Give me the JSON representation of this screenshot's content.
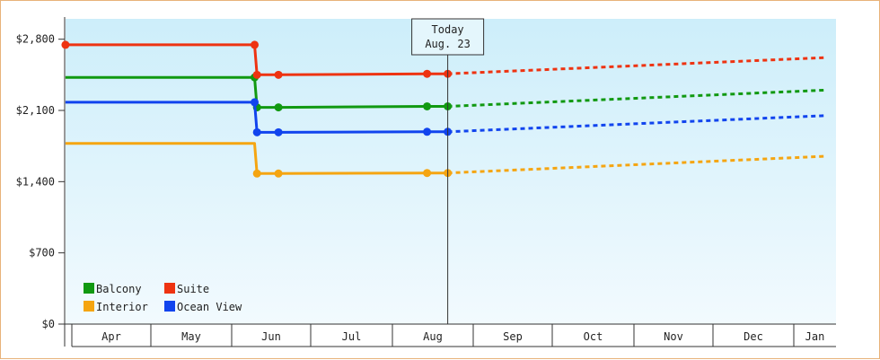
{
  "chart_data": {
    "type": "line",
    "ylim": [
      0,
      3000
    ],
    "y_ticks": [
      0,
      700,
      1400,
      2100,
      2800
    ],
    "y_tick_labels": [
      "$0",
      "$700",
      "$1,400",
      "$2,100",
      "$2,800"
    ],
    "x_labels": [
      "Apr",
      "May",
      "Jun",
      "Jul",
      "Aug",
      "Sep",
      "Oct",
      "Nov",
      "Dec",
      "Jan"
    ],
    "x_range": [
      -0.08,
      9.5
    ],
    "today": {
      "x": 4.73,
      "line1": "Today",
      "line2": "Aug. 23"
    },
    "grid": false,
    "legend_position": "bottom-left",
    "background_gradient": [
      "#cdeefa",
      "#f2fafe"
    ],
    "series": [
      {
        "name": "Balcony",
        "color": "#119911",
        "actual": [
          [
            -0.08,
            2425
          ],
          [
            2.3,
            2425
          ],
          [
            2.33,
            2130
          ],
          [
            2.6,
            2130
          ],
          [
            4.47,
            2140
          ],
          [
            4.73,
            2140
          ]
        ],
        "actual_markers": [
          [
            2.3,
            2425
          ],
          [
            2.33,
            2130
          ],
          [
            2.6,
            2130
          ],
          [
            4.47,
            2140
          ],
          [
            4.73,
            2140
          ]
        ],
        "forecast": [
          [
            4.73,
            2140
          ],
          [
            9.5,
            2300
          ]
        ]
      },
      {
        "name": "Suite",
        "color": "#ee3311",
        "actual": [
          [
            -0.08,
            2745
          ],
          [
            2.3,
            2745
          ],
          [
            2.33,
            2450
          ],
          [
            2.6,
            2450
          ],
          [
            4.47,
            2460
          ],
          [
            4.73,
            2460
          ]
        ],
        "actual_markers": [
          [
            -0.08,
            2745
          ],
          [
            2.3,
            2745
          ],
          [
            2.33,
            2450
          ],
          [
            2.6,
            2450
          ],
          [
            4.47,
            2460
          ],
          [
            4.73,
            2460
          ]
        ],
        "forecast": [
          [
            4.73,
            2460
          ],
          [
            9.5,
            2620
          ]
        ]
      },
      {
        "name": "Interior",
        "color": "#f5a511",
        "actual": [
          [
            -0.08,
            1775
          ],
          [
            2.3,
            1775
          ],
          [
            2.33,
            1480
          ],
          [
            2.6,
            1480
          ],
          [
            4.47,
            1485
          ],
          [
            4.73,
            1485
          ]
        ],
        "actual_markers": [
          [
            2.33,
            1480
          ],
          [
            2.6,
            1480
          ],
          [
            4.47,
            1485
          ],
          [
            4.73,
            1485
          ]
        ],
        "forecast": [
          [
            4.73,
            1485
          ],
          [
            9.5,
            1650
          ]
        ]
      },
      {
        "name": "Ocean View",
        "color": "#1144ee",
        "actual": [
          [
            -0.08,
            2180
          ],
          [
            2.3,
            2180
          ],
          [
            2.33,
            1885
          ],
          [
            2.6,
            1885
          ],
          [
            4.47,
            1890
          ],
          [
            4.73,
            1890
          ]
        ],
        "actual_markers": [
          [
            2.3,
            2180
          ],
          [
            2.33,
            1885
          ],
          [
            2.6,
            1885
          ],
          [
            4.47,
            1890
          ],
          [
            4.73,
            1890
          ]
        ],
        "forecast": [
          [
            4.73,
            1890
          ],
          [
            9.5,
            2050
          ]
        ]
      }
    ],
    "legend_order": [
      "Balcony",
      "Suite",
      "Interior",
      "Ocean View"
    ]
  }
}
